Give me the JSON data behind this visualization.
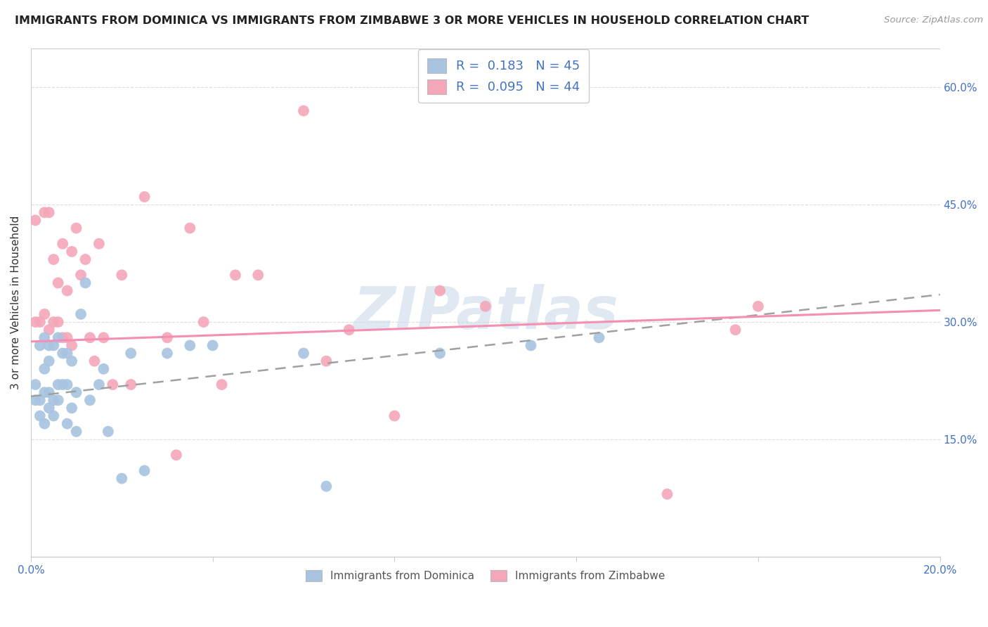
{
  "title": "IMMIGRANTS FROM DOMINICA VS IMMIGRANTS FROM ZIMBABWE 3 OR MORE VEHICLES IN HOUSEHOLD CORRELATION CHART",
  "source": "Source: ZipAtlas.com",
  "ylabel": "3 or more Vehicles in Household",
  "xlim": [
    0.0,
    0.2
  ],
  "ylim": [
    0.0,
    0.65
  ],
  "x_ticks": [
    0.0,
    0.04,
    0.08,
    0.12,
    0.16,
    0.2
  ],
  "x_tick_labels": [
    "0.0%",
    "",
    "",
    "",
    "",
    "20.0%"
  ],
  "y_ticks_right": [
    0.15,
    0.3,
    0.45,
    0.6
  ],
  "y_tick_labels_right": [
    "15.0%",
    "30.0%",
    "45.0%",
    "60.0%"
  ],
  "dominica_color": "#a8c4e0",
  "zimbabwe_color": "#f4a7b9",
  "dominica_R": 0.183,
  "dominica_N": 45,
  "zimbabwe_R": 0.095,
  "zimbabwe_N": 44,
  "dominica_line_color": "#a0a0a0",
  "dominica_line_style": "--",
  "zimbabwe_line_color": "#f48fb1",
  "zimbabwe_line_style": "-",
  "background_color": "#ffffff",
  "grid_color": "#dddddd",
  "watermark": "ZIPatlas",
  "dom_line_x0": 0.0,
  "dom_line_y0": 0.205,
  "dom_line_x1": 0.2,
  "dom_line_y1": 0.335,
  "zim_line_x0": 0.0,
  "zim_line_y0": 0.275,
  "zim_line_x1": 0.2,
  "zim_line_y1": 0.315,
  "dominica_x": [
    0.001,
    0.001,
    0.002,
    0.002,
    0.002,
    0.003,
    0.003,
    0.003,
    0.003,
    0.004,
    0.004,
    0.004,
    0.004,
    0.005,
    0.005,
    0.005,
    0.006,
    0.006,
    0.006,
    0.007,
    0.007,
    0.008,
    0.008,
    0.008,
    0.009,
    0.009,
    0.01,
    0.01,
    0.011,
    0.012,
    0.013,
    0.015,
    0.016,
    0.017,
    0.02,
    0.022,
    0.025,
    0.03,
    0.035,
    0.04,
    0.06,
    0.065,
    0.09,
    0.11,
    0.125
  ],
  "dominica_y": [
    0.2,
    0.22,
    0.18,
    0.2,
    0.27,
    0.17,
    0.21,
    0.24,
    0.28,
    0.19,
    0.21,
    0.25,
    0.27,
    0.18,
    0.2,
    0.27,
    0.2,
    0.22,
    0.28,
    0.22,
    0.26,
    0.17,
    0.22,
    0.26,
    0.19,
    0.25,
    0.16,
    0.21,
    0.31,
    0.35,
    0.2,
    0.22,
    0.24,
    0.16,
    0.1,
    0.26,
    0.11,
    0.26,
    0.27,
    0.27,
    0.26,
    0.09,
    0.26,
    0.27,
    0.28
  ],
  "zimbabwe_x": [
    0.001,
    0.001,
    0.002,
    0.003,
    0.003,
    0.004,
    0.004,
    0.005,
    0.005,
    0.006,
    0.006,
    0.007,
    0.007,
    0.008,
    0.008,
    0.009,
    0.009,
    0.01,
    0.011,
    0.012,
    0.013,
    0.014,
    0.015,
    0.016,
    0.018,
    0.02,
    0.022,
    0.025,
    0.03,
    0.032,
    0.035,
    0.038,
    0.042,
    0.045,
    0.05,
    0.06,
    0.065,
    0.07,
    0.08,
    0.09,
    0.1,
    0.14,
    0.155,
    0.16
  ],
  "zimbabwe_y": [
    0.3,
    0.43,
    0.3,
    0.31,
    0.44,
    0.29,
    0.44,
    0.3,
    0.38,
    0.3,
    0.35,
    0.28,
    0.4,
    0.28,
    0.34,
    0.27,
    0.39,
    0.42,
    0.36,
    0.38,
    0.28,
    0.25,
    0.4,
    0.28,
    0.22,
    0.36,
    0.22,
    0.46,
    0.28,
    0.13,
    0.42,
    0.3,
    0.22,
    0.36,
    0.36,
    0.57,
    0.25,
    0.29,
    0.18,
    0.34,
    0.32,
    0.08,
    0.29,
    0.32
  ]
}
